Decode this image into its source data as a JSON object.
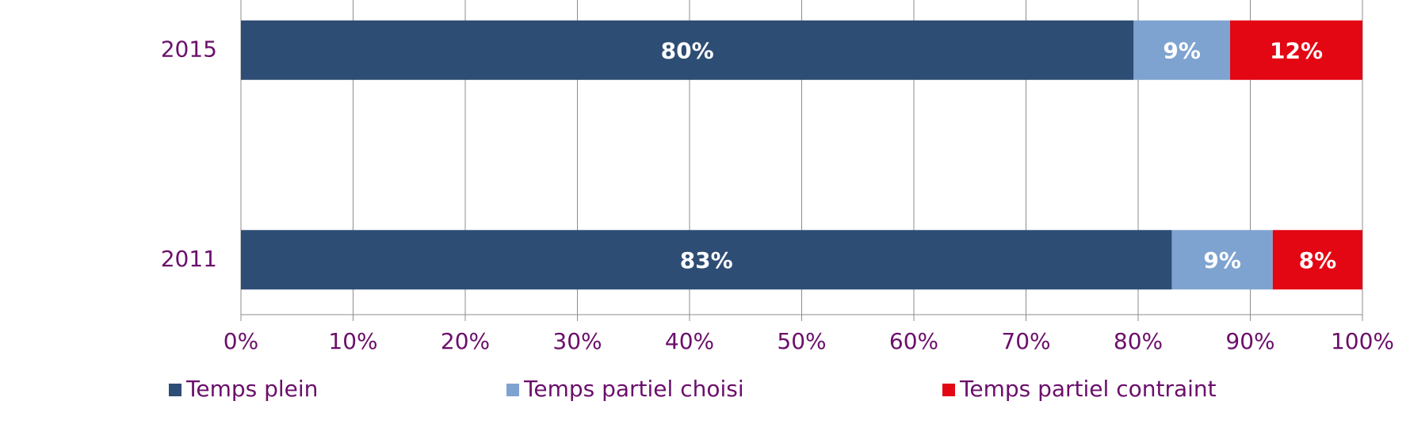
{
  "chart_data": {
    "type": "stacked-barh",
    "categories": [
      "2015",
      "2011"
    ],
    "series": [
      {
        "name": "Temps plein",
        "color": "#2e4d74",
        "values": [
          79.6,
          83
        ],
        "value_labels": [
          "80%",
          "83%"
        ]
      },
      {
        "name": "Temps partiel choisi",
        "color": "#7fa3d0",
        "values": [
          8.6,
          9
        ],
        "value_labels": [
          "9%",
          "9%"
        ]
      },
      {
        "name": "Temps partiel contraint",
        "color": "#e30613",
        "values": [
          11.8,
          8
        ],
        "value_labels": [
          "12%",
          "8%"
        ]
      }
    ],
    "xlim": [
      0,
      100
    ],
    "xticks": [
      {
        "value": 0,
        "label": "0%"
      },
      {
        "value": 10,
        "label": "10%"
      },
      {
        "value": 20,
        "label": "20%"
      },
      {
        "value": 30,
        "label": "30%"
      },
      {
        "value": 40,
        "label": "40%"
      },
      {
        "value": 50,
        "label": "50%"
      },
      {
        "value": 60,
        "label": "60%"
      },
      {
        "value": 70,
        "label": "70%"
      },
      {
        "value": 80,
        "label": "80%"
      },
      {
        "value": 90,
        "label": "90%"
      },
      {
        "value": 100,
        "label": "100%"
      }
    ],
    "grid": true,
    "legend": "bottom"
  }
}
